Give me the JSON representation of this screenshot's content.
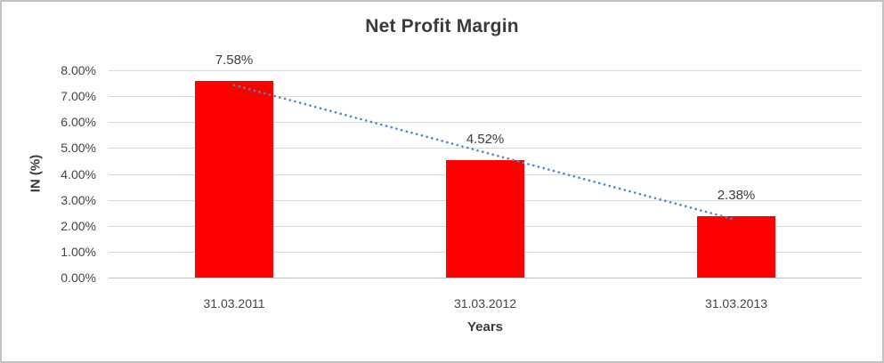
{
  "window": {
    "background": "#ffffff",
    "border_color": "#c3c3c3"
  },
  "chart_data": {
    "type": "bar",
    "title": "Net Profit Margin",
    "xlabel": "Years",
    "ylabel": "IN (%)",
    "categories": [
      "31.03.2011",
      "31.03.2012",
      "31.03.2013"
    ],
    "values": [
      7.58,
      4.52,
      2.38
    ],
    "data_labels": [
      "7.58%",
      "4.52%",
      "2.38%"
    ],
    "ylim": [
      0,
      8
    ],
    "ytick_step": 1,
    "ytick_labels_top_to_bottom": [
      "8.00%",
      "7.00%",
      "6.00%",
      "5.00%",
      "4.00%",
      "3.00%",
      "2.00%",
      "1.00%",
      "0.00%"
    ],
    "grid": "horizontal",
    "legend": "none",
    "bar_color": "#ff0000",
    "gridline_color": "#d9d9d9",
    "axis_line_color": "#bfbfbf",
    "text_color": "#3f3f3f",
    "trendline": {
      "type": "linear",
      "style": "dotted",
      "color": "#4e86c8"
    }
  }
}
